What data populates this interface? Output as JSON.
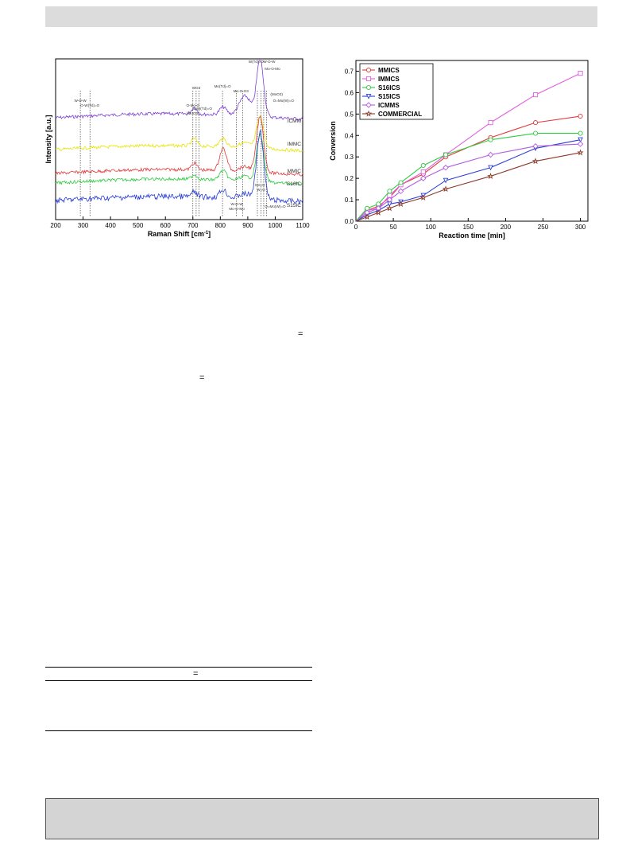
{
  "raman": {
    "xlabel": "Raman Shift [cm-1]",
    "xlabel_main": "Raman Shift [cm",
    "xlabel_sup": "-1",
    "xlabel_end": "]",
    "ylabel": "Intensity [a.u.]",
    "xticks": [
      "200",
      "300",
      "400",
      "500",
      "600",
      "700",
      "800",
      "900",
      "1000",
      "1100"
    ],
    "samples": [
      "ICMM",
      "IMMC",
      "MMIC",
      "S16IC",
      "S15IC"
    ],
    "colors": [
      "#7d3fd6",
      "#e6e600",
      "#e23a3a",
      "#2ecc40",
      "#2b3fd6"
    ],
    "annotations": {
      "a1": "W-O-W",
      "a2": "O-W(Td)=O",
      "a3": "O-Mo-O",
      "a4": "(MoO3)",
      "a5": "WO3",
      "a6": "O-W(Td)=O",
      "a7": "Mo(Td)=O",
      "a8": "Mo-O-O3",
      "a9": "W(Td)=O",
      "a10": "W-O-W",
      "a11": "Mo-O-Mo",
      "a12": "W-O-W",
      "a13": "Mo-O-Mo",
      "a14": "Mo=O",
      "a15": "W=O",
      "a16": "(MoO3)",
      "a17": "O=Mo(W)=O",
      "a18": "O=Mo(W)=O"
    }
  },
  "conversion": {
    "chart_data": {
      "type": "line",
      "xlabel": "Reaction time [min]",
      "ylabel": "Conversion",
      "xlim": [
        0,
        310
      ],
      "ylim": [
        0,
        0.75
      ],
      "xticks": [
        0,
        50,
        100,
        150,
        200,
        250,
        300
      ],
      "yticks": [
        0.0,
        0.1,
        0.2,
        0.3,
        0.4,
        0.5,
        0.6,
        0.7
      ],
      "legend_position": "top-left",
      "x": [
        0,
        15,
        30,
        45,
        60,
        90,
        120,
        180,
        240,
        300
      ],
      "series": [
        {
          "name": "MMICS",
          "color": "#e23a3a",
          "marker": "circle",
          "values": [
            0,
            0.05,
            0.07,
            0.11,
            0.17,
            0.22,
            0.3,
            0.39,
            0.46,
            0.49
          ]
        },
        {
          "name": "IMMCS",
          "color": "#e060e0",
          "marker": "square",
          "values": [
            0,
            0.05,
            0.06,
            0.12,
            0.17,
            0.23,
            0.31,
            0.46,
            0.59,
            0.69
          ]
        },
        {
          "name": "S16ICS",
          "color": "#2ecc40",
          "marker": "circle",
          "values": [
            0,
            0.06,
            0.08,
            0.14,
            0.18,
            0.26,
            0.31,
            0.38,
            0.41,
            0.41
          ]
        },
        {
          "name": "S15ICS",
          "color": "#2b3fd6",
          "marker": "triangle-down",
          "values": [
            0,
            0.03,
            0.05,
            0.08,
            0.09,
            0.12,
            0.19,
            0.25,
            0.34,
            0.38
          ]
        },
        {
          "name": "ICMMS",
          "color": "#b05ce0",
          "marker": "diamond",
          "values": [
            0,
            0.04,
            0.06,
            0.1,
            0.14,
            0.2,
            0.25,
            0.31,
            0.35,
            0.36
          ]
        },
        {
          "name": "COMMERCIAL",
          "color": "#8b3a2a",
          "marker": "star",
          "values": [
            0,
            0.02,
            0.04,
            0.06,
            0.08,
            0.11,
            0.15,
            0.21,
            0.28,
            0.32
          ]
        }
      ]
    }
  },
  "text_marks": {
    "eq1": "=",
    "eq2": "=",
    "eq3": "="
  }
}
